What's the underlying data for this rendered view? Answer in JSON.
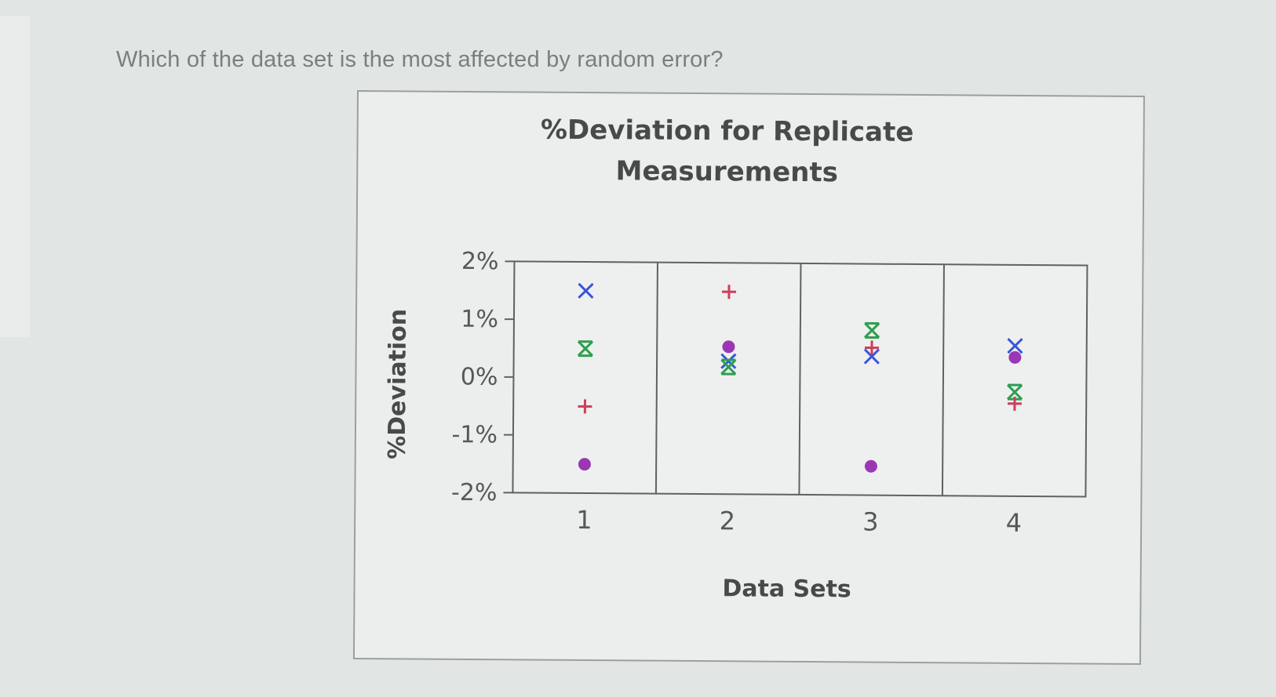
{
  "question": "Which of the data set is the most affected by random error?",
  "chart_data": {
    "type": "scatter",
    "title_lines": [
      "%Deviation for Replicate",
      "Measurements"
    ],
    "xlabel": "Data Sets",
    "ylabel": "%Deviation",
    "categories": [
      "1",
      "2",
      "3",
      "4"
    ],
    "ylim": [
      -2,
      2
    ],
    "y_ticks": [
      {
        "value": 2,
        "label": "2%"
      },
      {
        "value": 1,
        "label": "1%"
      },
      {
        "value": 0,
        "label": "0%"
      },
      {
        "value": -1,
        "label": "-1%"
      },
      {
        "value": -2,
        "label": "-2%"
      }
    ],
    "grid": "vertical dividers between data sets",
    "series": [
      {
        "marker": "x",
        "color": "#3a55d6",
        "values": [
          1.5,
          0.3,
          0.4,
          0.6
        ]
      },
      {
        "marker": "asterisk",
        "color": "#2e9e4f",
        "values": [
          0.5,
          0.2,
          0.85,
          -0.2
        ]
      },
      {
        "marker": "plus",
        "color": "#cf3d5b",
        "values": [
          -0.5,
          1.5,
          0.55,
          -0.4
        ]
      },
      {
        "marker": "dot",
        "color": "#9b37b4",
        "values": [
          -1.5,
          0.55,
          -1.5,
          0.4
        ]
      }
    ]
  }
}
